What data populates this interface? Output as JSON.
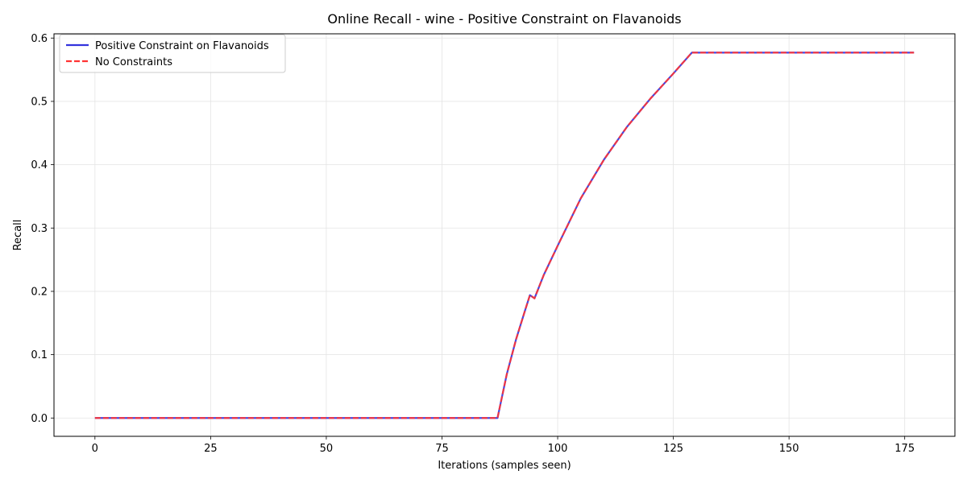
{
  "chart_data": {
    "type": "line",
    "title": "Online Recall - wine - Positive Constraint on Flavanoids",
    "xlabel": "Iterations (samples seen)",
    "ylabel": "Recall",
    "xlim": [
      -8.85,
      185.85
    ],
    "ylim": [
      -0.0289,
      0.6067
    ],
    "xticks": [
      0,
      25,
      50,
      75,
      100,
      125,
      150,
      175
    ],
    "yticks": [
      0.0,
      0.1,
      0.2,
      0.3,
      0.4,
      0.5,
      0.6
    ],
    "xtick_labels": [
      "0",
      "25",
      "50",
      "75",
      "100",
      "125",
      "150",
      "175"
    ],
    "ytick_labels": [
      "0.0",
      "0.1",
      "0.2",
      "0.3",
      "0.4",
      "0.5",
      "0.6"
    ],
    "grid": true,
    "legend_position": "upper-left",
    "series": [
      {
        "name": "Positive Constraint on Flavanoids",
        "color": "#3333dd",
        "style": "solid",
        "x": [
          0,
          87,
          89,
          91,
          93,
          94,
          95,
          97,
          100,
          105,
          110,
          115,
          120,
          125,
          129,
          177
        ],
        "y": [
          0.0,
          0.0,
          0.069,
          0.124,
          0.171,
          0.194,
          0.189,
          0.226,
          0.272,
          0.347,
          0.408,
          0.46,
          0.504,
          0.544,
          0.577,
          0.577
        ]
      },
      {
        "name": "No Constraints",
        "color": "#ff3333",
        "style": "dashed",
        "x": [
          0,
          87,
          89,
          91,
          93,
          94,
          95,
          97,
          100,
          105,
          110,
          115,
          120,
          125,
          129,
          177
        ],
        "y": [
          0.0,
          0.0,
          0.069,
          0.124,
          0.171,
          0.194,
          0.189,
          0.226,
          0.272,
          0.347,
          0.408,
          0.46,
          0.504,
          0.544,
          0.577,
          0.577
        ]
      }
    ]
  }
}
